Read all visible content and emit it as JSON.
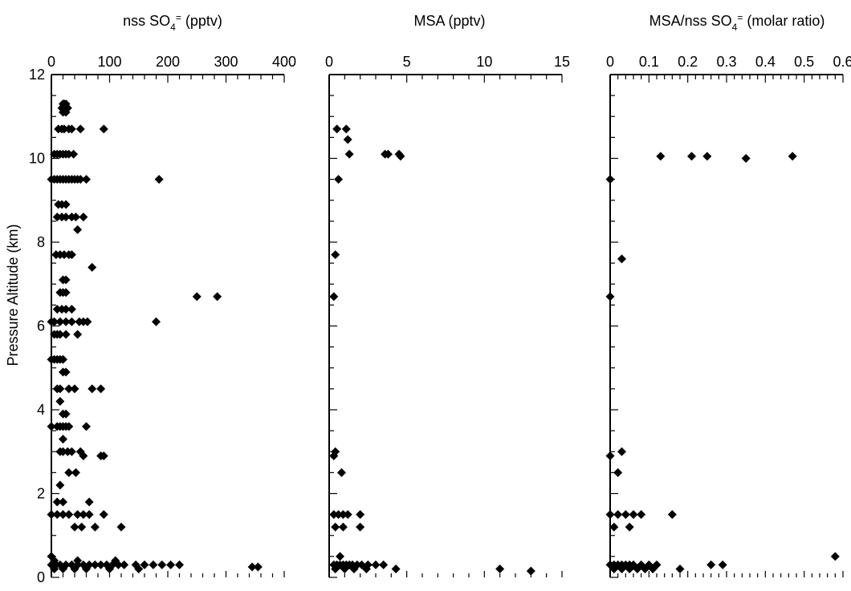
{
  "figure": {
    "ylabel": "Pressure Altitude (km)"
  },
  "chart_data": [
    {
      "type": "scatter",
      "title": "nss SO4= (pptv)",
      "title_parts": {
        "main": "nss SO",
        "sub": "4",
        "sup": "=",
        "tail": " (pptv)"
      },
      "xlabel": "",
      "ylabel": "Pressure Altitude (km)",
      "xlim": [
        0,
        400
      ],
      "ylim": [
        0,
        12
      ],
      "xticks": [
        0,
        100,
        200,
        300,
        400
      ],
      "xticklabels": [
        "0",
        "100",
        "200",
        "300",
        "400"
      ],
      "yticks": [
        0,
        2,
        4,
        6,
        8,
        10,
        12
      ],
      "yticklabels": [
        "0",
        "2",
        "4",
        "6",
        "8",
        "10",
        "12"
      ],
      "x_minor_step": 20,
      "y_minor_step": 0.5,
      "marker": "diamond",
      "series": [
        {
          "points": [
            [
              20,
              11.3
            ],
            [
              22,
              11.3
            ],
            [
              25,
              11.3
            ],
            [
              28,
              11.2
            ],
            [
              18,
              11.2
            ],
            [
              25,
              11.1
            ],
            [
              20,
              11.1
            ],
            [
              12,
              10.7
            ],
            [
              18,
              10.7
            ],
            [
              22,
              10.7
            ],
            [
              30,
              10.7
            ],
            [
              35,
              10.7
            ],
            [
              50,
              10.7
            ],
            [
              90,
              10.7
            ],
            [
              5,
              10.1
            ],
            [
              10,
              10.1
            ],
            [
              15,
              10.1
            ],
            [
              20,
              10.1
            ],
            [
              25,
              10.1
            ],
            [
              30,
              10.1
            ],
            [
              38,
              10.1
            ],
            [
              0,
              9.5
            ],
            [
              5,
              9.5
            ],
            [
              10,
              9.5
            ],
            [
              15,
              9.5
            ],
            [
              20,
              9.5
            ],
            [
              25,
              9.5
            ],
            [
              30,
              9.5
            ],
            [
              35,
              9.5
            ],
            [
              40,
              9.5
            ],
            [
              45,
              9.5
            ],
            [
              50,
              9.5
            ],
            [
              60,
              9.5
            ],
            [
              185,
              9.5
            ],
            [
              12,
              8.9
            ],
            [
              18,
              8.9
            ],
            [
              25,
              8.9
            ],
            [
              10,
              8.6
            ],
            [
              18,
              8.6
            ],
            [
              25,
              8.6
            ],
            [
              35,
              8.6
            ],
            [
              42,
              8.6
            ],
            [
              55,
              8.6
            ],
            [
              45,
              8.3
            ],
            [
              8,
              7.7
            ],
            [
              15,
              7.7
            ],
            [
              22,
              7.7
            ],
            [
              30,
              7.7
            ],
            [
              35,
              7.7
            ],
            [
              70,
              7.4
            ],
            [
              20,
              7.1
            ],
            [
              25,
              7.1
            ],
            [
              15,
              6.8
            ],
            [
              20,
              6.8
            ],
            [
              25,
              6.8
            ],
            [
              250,
              6.7
            ],
            [
              285,
              6.7
            ],
            [
              10,
              6.4
            ],
            [
              18,
              6.4
            ],
            [
              25,
              6.4
            ],
            [
              35,
              6.4
            ],
            [
              0,
              6.1
            ],
            [
              5,
              6.1
            ],
            [
              15,
              6.1
            ],
            [
              25,
              6.1
            ],
            [
              35,
              6.1
            ],
            [
              48,
              6.1
            ],
            [
              55,
              6.1
            ],
            [
              62,
              6.1
            ],
            [
              180,
              6.1
            ],
            [
              5,
              5.8
            ],
            [
              10,
              5.8
            ],
            [
              15,
              5.8
            ],
            [
              25,
              5.8
            ],
            [
              45,
              5.8
            ],
            [
              0,
              5.2
            ],
            [
              5,
              5.2
            ],
            [
              10,
              5.2
            ],
            [
              15,
              5.2
            ],
            [
              20,
              5.2
            ],
            [
              20,
              4.9
            ],
            [
              25,
              4.9
            ],
            [
              10,
              4.5
            ],
            [
              15,
              4.5
            ],
            [
              30,
              4.5
            ],
            [
              40,
              4.5
            ],
            [
              70,
              4.5
            ],
            [
              85,
              4.5
            ],
            [
              15,
              4.2
            ],
            [
              20,
              3.9
            ],
            [
              25,
              3.9
            ],
            [
              0,
              3.6
            ],
            [
              10,
              3.6
            ],
            [
              15,
              3.6
            ],
            [
              20,
              3.6
            ],
            [
              25,
              3.6
            ],
            [
              30,
              3.6
            ],
            [
              60,
              3.6
            ],
            [
              20,
              3.3
            ],
            [
              15,
              3.0
            ],
            [
              20,
              3.0
            ],
            [
              28,
              3.0
            ],
            [
              35,
              3.0
            ],
            [
              50,
              3.0
            ],
            [
              55,
              2.9
            ],
            [
              85,
              2.9
            ],
            [
              90,
              2.9
            ],
            [
              30,
              2.5
            ],
            [
              42,
              2.5
            ],
            [
              15,
              2.2
            ],
            [
              10,
              1.8
            ],
            [
              20,
              1.8
            ],
            [
              65,
              1.8
            ],
            [
              0,
              1.5
            ],
            [
              10,
              1.5
            ],
            [
              20,
              1.5
            ],
            [
              30,
              1.5
            ],
            [
              45,
              1.5
            ],
            [
              55,
              1.5
            ],
            [
              65,
              1.5
            ],
            [
              90,
              1.5
            ],
            [
              40,
              1.2
            ],
            [
              52,
              1.2
            ],
            [
              75,
              1.2
            ],
            [
              120,
              1.2
            ],
            [
              0,
              0.5
            ],
            [
              5,
              0.4
            ],
            [
              45,
              0.4
            ],
            [
              110,
              0.4
            ],
            [
              0,
              0.3
            ],
            [
              8,
              0.3
            ],
            [
              15,
              0.3
            ],
            [
              25,
              0.3
            ],
            [
              35,
              0.3
            ],
            [
              45,
              0.3
            ],
            [
              55,
              0.3
            ],
            [
              65,
              0.3
            ],
            [
              75,
              0.3
            ],
            [
              85,
              0.3
            ],
            [
              95,
              0.3
            ],
            [
              105,
              0.3
            ],
            [
              115,
              0.3
            ],
            [
              125,
              0.3
            ],
            [
              145,
              0.3
            ],
            [
              160,
              0.3
            ],
            [
              175,
              0.3
            ],
            [
              190,
              0.3
            ],
            [
              205,
              0.3
            ],
            [
              220,
              0.3
            ],
            [
              345,
              0.25
            ],
            [
              355,
              0.25
            ],
            [
              5,
              0.2
            ],
            [
              20,
              0.2
            ],
            [
              40,
              0.2
            ],
            [
              60,
              0.2
            ],
            [
              100,
              0.2
            ],
            [
              150,
              0.2
            ]
          ]
        }
      ]
    },
    {
      "type": "scatter",
      "title": "MSA (pptv)",
      "xlabel": "",
      "ylabel": "",
      "xlim": [
        0,
        15
      ],
      "ylim": [
        0,
        12
      ],
      "xticks": [
        0,
        5,
        10,
        15
      ],
      "xticklabels": [
        "0",
        "5",
        "10",
        "15"
      ],
      "yticks": [
        0,
        2,
        4,
        6,
        8,
        10,
        12
      ],
      "yticklabels": [],
      "x_minor_step": 1,
      "y_minor_step": 0.5,
      "marker": "diamond",
      "series": [
        {
          "points": [
            [
              0.5,
              10.7
            ],
            [
              1.1,
              10.7
            ],
            [
              1.2,
              10.45
            ],
            [
              1.3,
              10.1
            ],
            [
              3.6,
              10.1
            ],
            [
              3.8,
              10.1
            ],
            [
              4.5,
              10.1
            ],
            [
              4.6,
              10.05
            ],
            [
              0.6,
              9.5
            ],
            [
              0.4,
              7.7
            ],
            [
              0.3,
              6.7
            ],
            [
              0.4,
              3.0
            ],
            [
              0.3,
              2.9
            ],
            [
              0.8,
              2.5
            ],
            [
              0.3,
              1.5
            ],
            [
              0.6,
              1.5
            ],
            [
              0.9,
              1.5
            ],
            [
              1.2,
              1.5
            ],
            [
              2.0,
              1.5
            ],
            [
              0.4,
              1.2
            ],
            [
              0.9,
              1.2
            ],
            [
              2.0,
              1.2
            ],
            [
              0.7,
              0.5
            ],
            [
              0.3,
              0.3
            ],
            [
              0.5,
              0.3
            ],
            [
              0.7,
              0.3
            ],
            [
              0.9,
              0.3
            ],
            [
              1.1,
              0.3
            ],
            [
              1.3,
              0.3
            ],
            [
              1.5,
              0.3
            ],
            [
              1.8,
              0.3
            ],
            [
              2.1,
              0.3
            ],
            [
              2.5,
              0.3
            ],
            [
              3.0,
              0.3
            ],
            [
              3.5,
              0.3
            ],
            [
              0.4,
              0.2
            ],
            [
              1.0,
              0.2
            ],
            [
              1.6,
              0.2
            ],
            [
              2.4,
              0.2
            ],
            [
              4.3,
              0.2
            ],
            [
              11.0,
              0.2
            ],
            [
              13.0,
              0.15
            ]
          ]
        }
      ]
    },
    {
      "type": "scatter",
      "title": "MSA/nss SO4= (molar ratio)",
      "title_parts": {
        "main": "MSA/nss SO",
        "sub": "4",
        "sup": "=",
        "tail": " (molar ratio)"
      },
      "xlabel": "",
      "ylabel": "",
      "xlim": [
        0,
        0.6
      ],
      "ylim": [
        0,
        12
      ],
      "xticks": [
        0,
        0.1,
        0.2,
        0.3,
        0.4,
        0.5,
        0.6
      ],
      "xticklabels": [
        "0",
        "0.1",
        "0.2",
        "0.3",
        "0.4",
        "0.5",
        "0.6"
      ],
      "yticks": [
        0,
        2,
        4,
        6,
        8,
        10,
        12
      ],
      "yticklabels": [],
      "x_minor_step": 0.02,
      "y_minor_step": 0.5,
      "marker": "diamond",
      "series": [
        {
          "points": [
            [
              0.13,
              10.05
            ],
            [
              0.21,
              10.05
            ],
            [
              0.25,
              10.05
            ],
            [
              0.35,
              10.0
            ],
            [
              0.47,
              10.05
            ],
            [
              0.0,
              9.5
            ],
            [
              0.03,
              7.6
            ],
            [
              0.0,
              6.7
            ],
            [
              0.03,
              3.0
            ],
            [
              0.0,
              2.9
            ],
            [
              0.02,
              2.5
            ],
            [
              0.0,
              1.5
            ],
            [
              0.02,
              1.5
            ],
            [
              0.04,
              1.5
            ],
            [
              0.06,
              1.5
            ],
            [
              0.08,
              1.5
            ],
            [
              0.16,
              1.5
            ],
            [
              0.01,
              1.2
            ],
            [
              0.05,
              1.2
            ],
            [
              0.58,
              0.5
            ],
            [
              0.26,
              0.3
            ],
            [
              0.29,
              0.3
            ],
            [
              0.0,
              0.3
            ],
            [
              0.01,
              0.3
            ],
            [
              0.02,
              0.3
            ],
            [
              0.03,
              0.3
            ],
            [
              0.04,
              0.3
            ],
            [
              0.05,
              0.3
            ],
            [
              0.06,
              0.3
            ],
            [
              0.08,
              0.3
            ],
            [
              0.1,
              0.3
            ],
            [
              0.12,
              0.3
            ],
            [
              0.01,
              0.2
            ],
            [
              0.03,
              0.2
            ],
            [
              0.05,
              0.2
            ],
            [
              0.07,
              0.2
            ],
            [
              0.09,
              0.2
            ],
            [
              0.11,
              0.2
            ],
            [
              0.18,
              0.2
            ]
          ]
        }
      ]
    }
  ]
}
